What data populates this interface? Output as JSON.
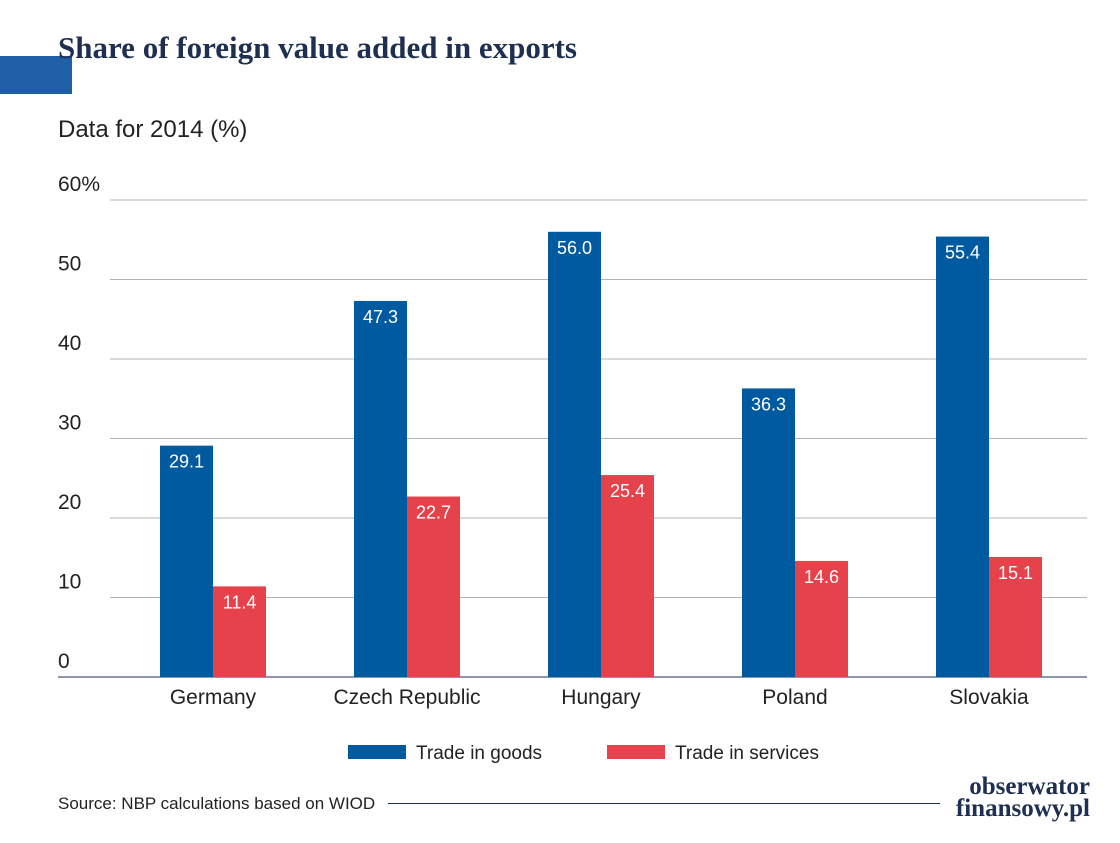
{
  "title": "Share of foreign value added in exports",
  "subtitle": "Data for 2014 (%)",
  "source": "Source: NBP calculations based on WIOD",
  "logo": {
    "line1": "obserwator",
    "line2": "finansowy.pl"
  },
  "colors": {
    "title_bar": "#1e5fa5",
    "title_text": "#1e2f52",
    "goods": "#005aa0",
    "services": "#e6424b",
    "grid": "#b3b3b3",
    "axis": "#1e2f52"
  },
  "chart_data": {
    "type": "bar",
    "categories": [
      "Germany",
      "Czech Republic",
      "Hungary",
      "Poland",
      "Slovakia"
    ],
    "series": [
      {
        "name": "Trade in goods",
        "values": [
          29.1,
          47.3,
          56.0,
          36.3,
          55.4
        ]
      },
      {
        "name": "Trade in services",
        "values": [
          11.4,
          22.7,
          25.4,
          14.6,
          15.1
        ]
      }
    ],
    "data_labels": [
      [
        "29.1",
        "47.3",
        "56.0",
        "36.3",
        "55.4"
      ],
      [
        "11.4",
        "22.7",
        "25.4",
        "14.6",
        "15.1"
      ]
    ],
    "ylim": [
      0,
      60
    ],
    "yticks": [
      "0",
      "10",
      "20",
      "30",
      "40",
      "50",
      "60%"
    ],
    "grid": true,
    "legend_position": "bottom"
  }
}
